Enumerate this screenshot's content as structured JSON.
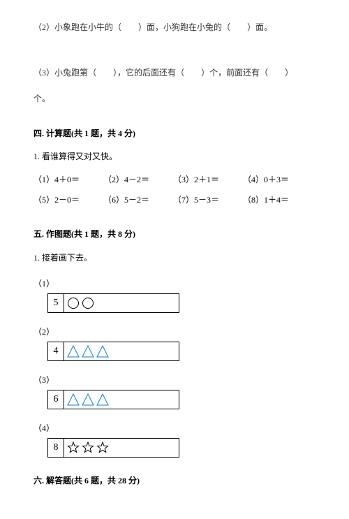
{
  "q2": {
    "prefix": "（2）小象跑在小牛的（",
    "mid": "）面，小狗跑在小兔的（",
    "suffix": "）面。"
  },
  "q3": {
    "prefix": "（3）小兔跑第（",
    "mid1": "），它的后面还有（",
    "mid2": "）个，前面还有（",
    "suffix": "）",
    "tail": "个。"
  },
  "sec4": {
    "heading": "四. 计算题(共 1 题，共 4 分)",
    "prompt": "1. 看谁算得又对又快。",
    "row1": [
      {
        "label": "（1）4＋0＝"
      },
      {
        "label": "（2）4－2＝"
      },
      {
        "label": "（3）2＋1＝"
      },
      {
        "label": "（4）0＋3＝"
      }
    ],
    "row2": [
      {
        "label": "（5）2－0＝"
      },
      {
        "label": "（6）5－2＝"
      },
      {
        "label": "（7）5－3＝"
      },
      {
        "label": "（8）1＋4＝"
      }
    ]
  },
  "sec5": {
    "heading": "五. 作图题(共 1 题，共 8 分)",
    "prompt": "1. 接着画下去。",
    "figs": [
      {
        "label": "（1）",
        "num": "5",
        "shape": "circle",
        "count": 2,
        "stroke": "#000000"
      },
      {
        "label": "（2）",
        "num": "4",
        "shape": "triangle",
        "count": 3,
        "stroke": "#0f7fbf"
      },
      {
        "label": "（3）",
        "num": "6",
        "shape": "triangle",
        "count": 3,
        "stroke": "#0f7fbf"
      },
      {
        "label": "（4）",
        "num": "8",
        "shape": "star",
        "count": 3,
        "stroke": "#000000"
      }
    ]
  },
  "sec6": {
    "heading": "六. 解答题(共 6 题，共 28 分)"
  },
  "styling": {
    "shape_size": 18,
    "stroke_width": 1,
    "bg": "#ffffff",
    "font_main": "SimSun",
    "font_size_body": 12
  }
}
